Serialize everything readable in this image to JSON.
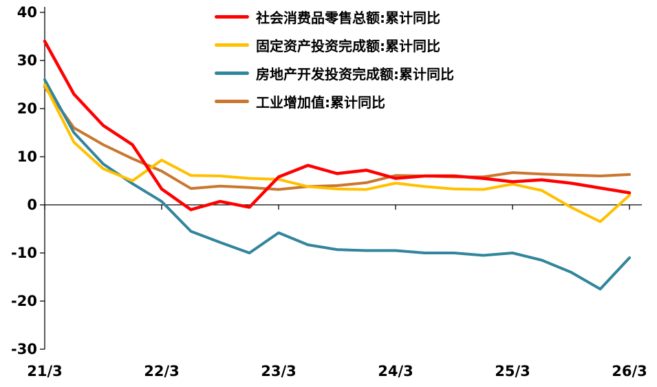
{
  "chart_data": {
    "type": "line",
    "title": "",
    "xlabel": "",
    "ylabel": "",
    "ylim": [
      -30,
      40
    ],
    "grid": false,
    "legend_position": "top-left-vertical",
    "y_ticks": [
      40,
      30,
      20,
      10,
      0,
      -10,
      -20,
      -30
    ],
    "x_tick_labels": [
      "21/3",
      "22/3",
      "23/3",
      "24/3",
      "25/3",
      "26/3"
    ],
    "x_points": [
      "21/3",
      "21/6",
      "21/9",
      "21/12",
      "22/3",
      "22/6",
      "22/9",
      "22/12",
      "23/3",
      "23/6",
      "23/9",
      "23/12",
      "24/3",
      "24/6",
      "24/9",
      "24/12",
      "25/3",
      "25/6",
      "25/9",
      "25/12",
      "26/3"
    ],
    "series": [
      {
        "id": "retail-sales",
        "label": "社会消费品零售总额:累计同比",
        "color": "#FF0000",
        "values": [
          34,
          23,
          16.5,
          12.5,
          3.3,
          -1,
          0.7,
          -0.5,
          5.8,
          8.2,
          6.5,
          7.2,
          5.5,
          6,
          6,
          5.5,
          4.8,
          5.2,
          4.5,
          3.5,
          2.5
        ]
      },
      {
        "id": "fixed-asset-investment",
        "label": "固定资产投资完成额:累计同比",
        "color": "#FFC000",
        "values": [
          25,
          13,
          7.5,
          5,
          9.3,
          6.1,
          6,
          5.5,
          5.3,
          3.8,
          3.3,
          3.2,
          4.5,
          3.8,
          3.3,
          3.2,
          4.3,
          3,
          -0.5,
          -3.5,
          2
        ]
      },
      {
        "id": "real-estate-investment",
        "label": "房地产开发投资完成额:累计同比",
        "color": "#31859C",
        "values": [
          26,
          15,
          8.5,
          4.4,
          0.7,
          -5.5,
          -7.8,
          -10,
          -5.8,
          -8.3,
          -9.3,
          -9.5,
          -9.5,
          -10,
          -10,
          -10.5,
          -10,
          -11.5,
          -14,
          -17.5,
          -11
        ]
      },
      {
        "id": "industrial-value-added",
        "label": "工业增加值:累计同比",
        "color": "#C9772F",
        "values": [
          24.5,
          16,
          12.5,
          9.6,
          7,
          3.4,
          3.9,
          3.6,
          3.2,
          3.8,
          4,
          4.6,
          6.1,
          6,
          5.8,
          5.8,
          6.7,
          6.4,
          6.2,
          6,
          6.3
        ]
      }
    ]
  }
}
